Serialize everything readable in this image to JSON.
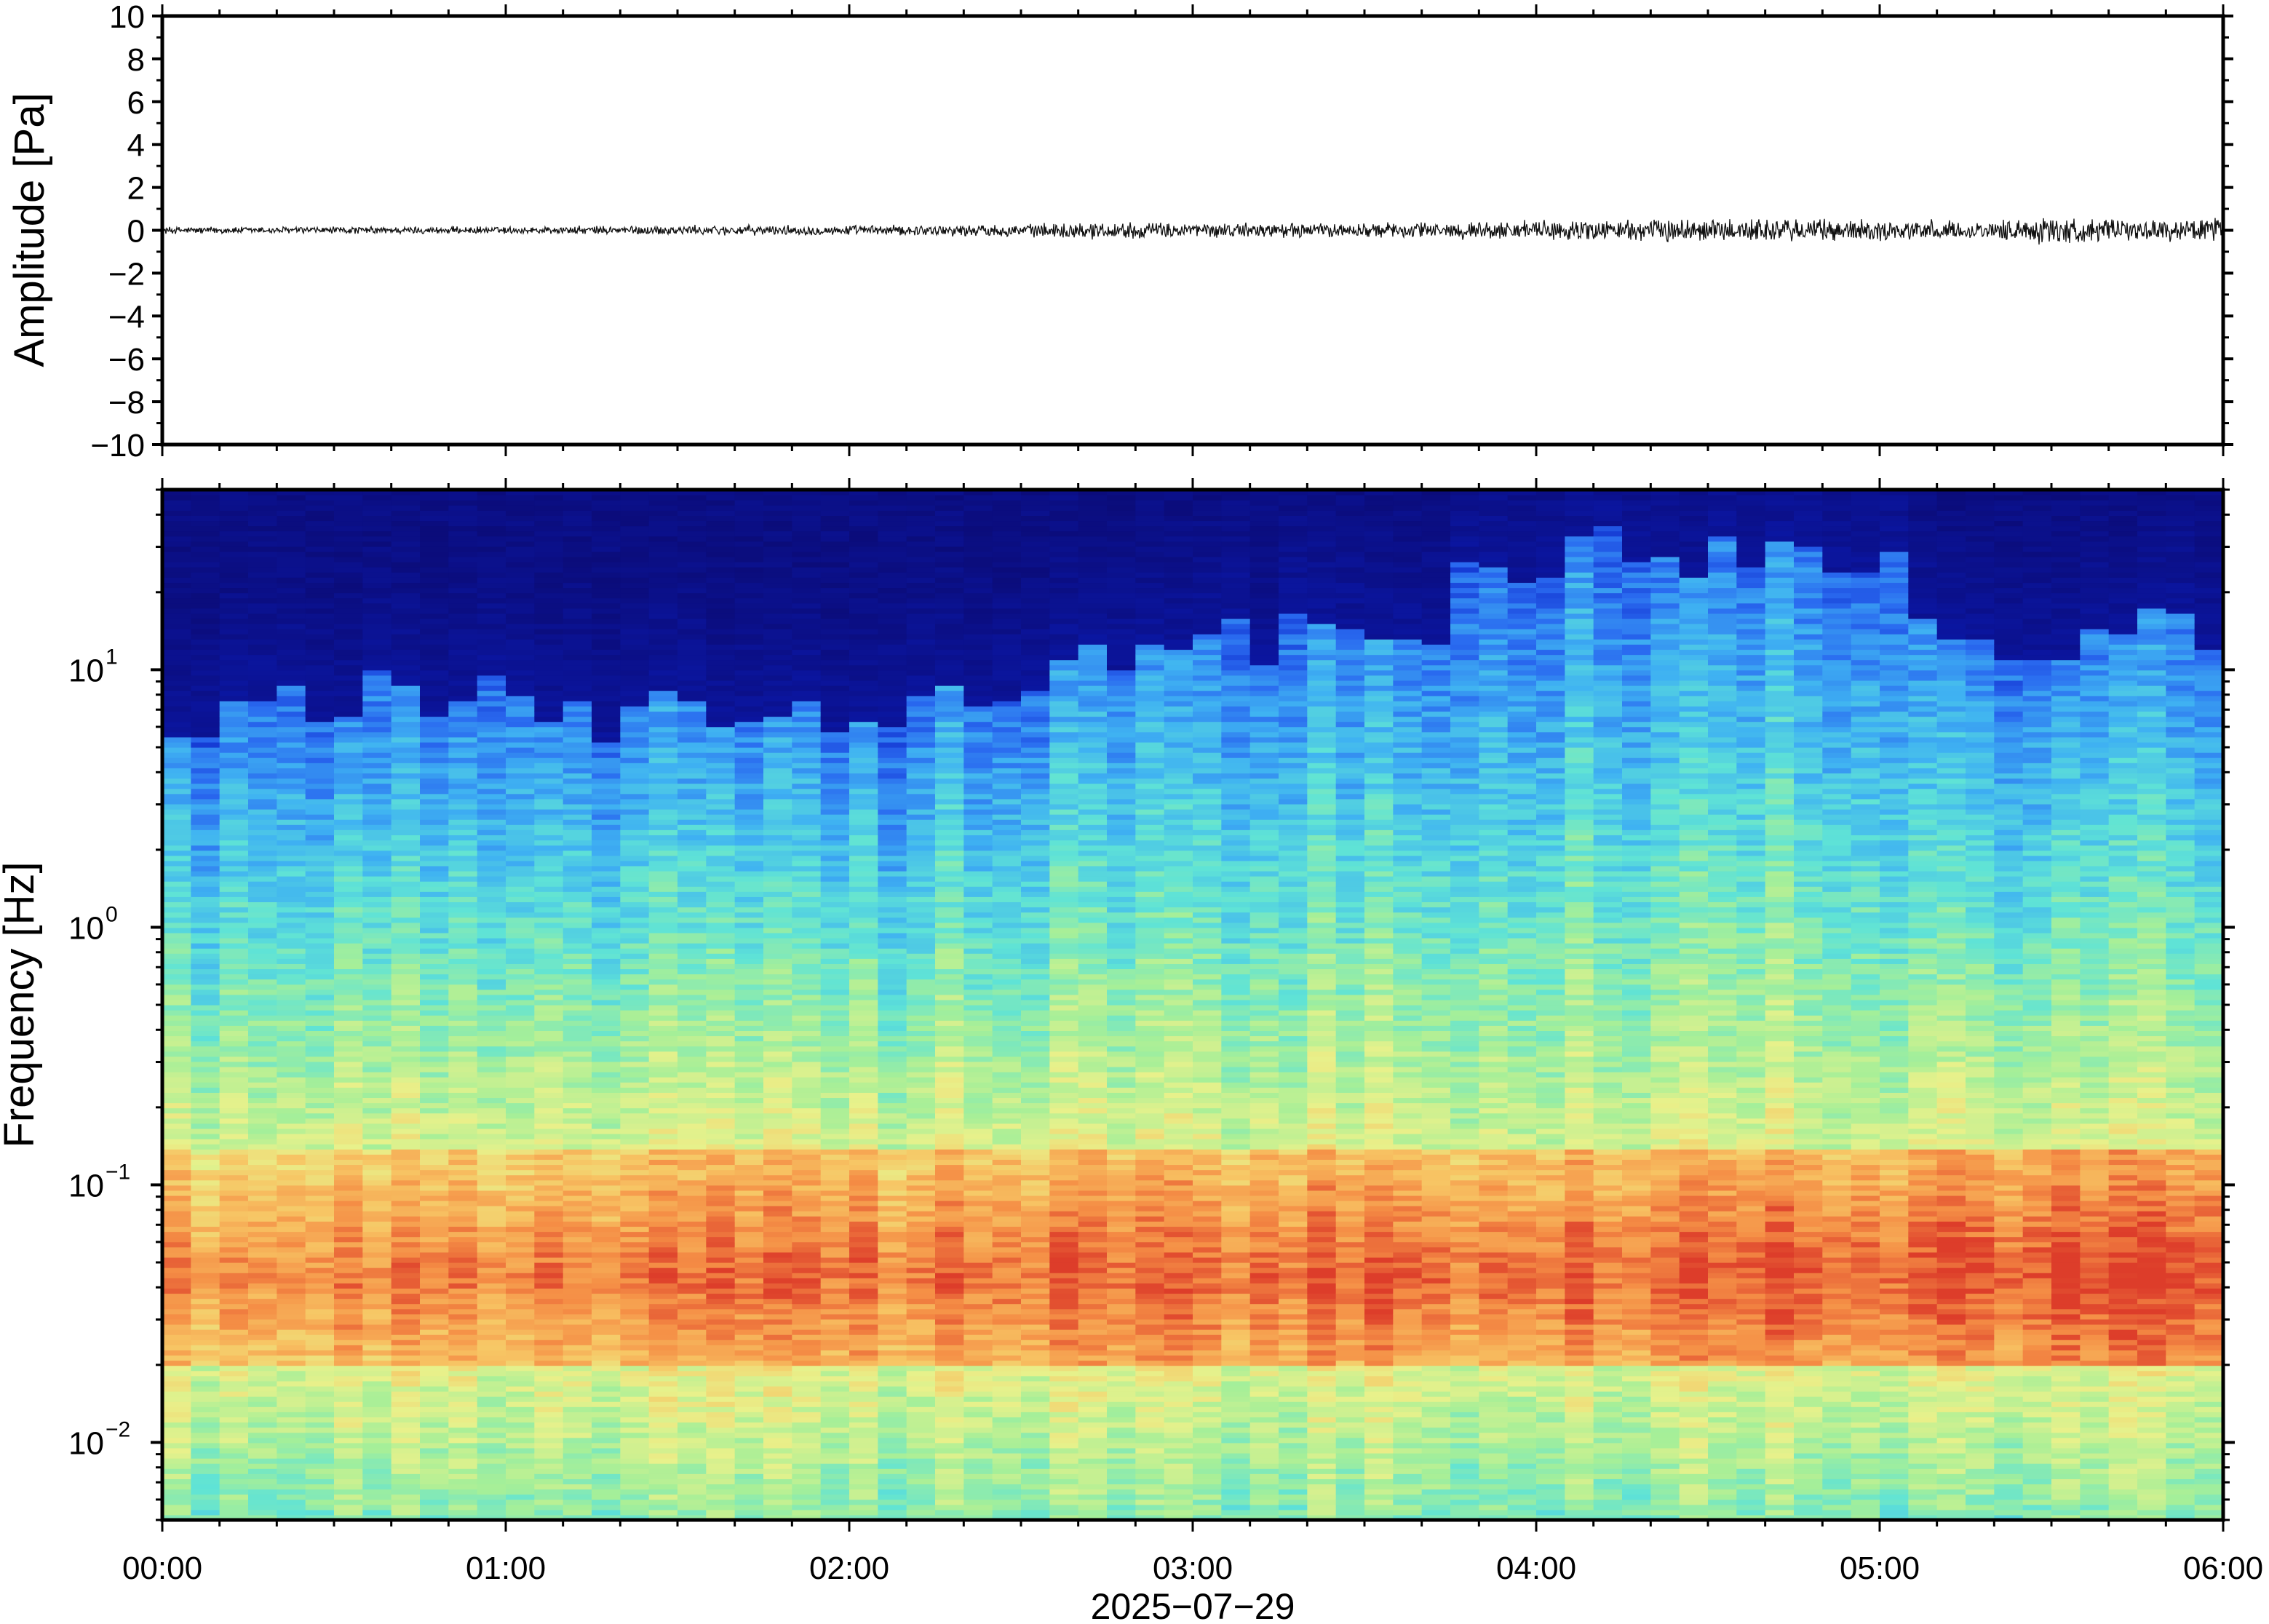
{
  "chart_data": [
    {
      "type": "line",
      "panel": "waveform",
      "ylabel": "Amplitude [Pa]",
      "ylim": [
        -10,
        10
      ],
      "y_ticks": [
        10,
        8,
        6,
        4,
        2,
        0,
        -2,
        -4,
        -6,
        -8,
        -10
      ],
      "y_tick_labels": [
        "10",
        "8",
        "6",
        "4",
        "2",
        "0",
        "−2",
        "−4",
        "−6",
        "−8",
        "−10"
      ],
      "xlim_hours": [
        0,
        6
      ],
      "series": [
        {
          "x_hours": [
            0,
            0.5,
            1,
            1.5,
            2,
            2.5,
            2.7,
            3,
            3.5,
            3.8,
            4,
            4.3,
            4.6,
            5,
            5.3,
            5.5,
            5.7,
            6
          ],
          "envelope_pa": [
            0.15,
            0.15,
            0.15,
            0.2,
            0.2,
            0.25,
            0.35,
            0.3,
            0.3,
            0.35,
            0.4,
            0.45,
            0.5,
            0.45,
            0.35,
            0.6,
            0.4,
            0.5
          ]
        }
      ],
      "grid": false
    },
    {
      "type": "heatmap",
      "panel": "spectrogram",
      "ylabel": "Frequency [Hz]",
      "yscale": "log",
      "ylim": [
        0.005,
        50
      ],
      "y_ticks": [
        0.01,
        0.1,
        1,
        10
      ],
      "y_tick_labels": [
        {
          "base": "10",
          "exp": "−2"
        },
        {
          "base": "10",
          "exp": "−1"
        },
        {
          "base": "10",
          "exp": "0"
        },
        {
          "base": "10",
          "exp": "1"
        }
      ],
      "xlim_hours": [
        0,
        6
      ],
      "x_tick_labels": [
        "00:00",
        "01:00",
        "02:00",
        "03:00",
        "04:00",
        "05:00",
        "06:00"
      ],
      "xlabel": "2025−07−29",
      "colormap": [
        "#0b0c7a",
        "#0a1fc4",
        "#2a6bf0",
        "#3fb2f2",
        "#5fe3d6",
        "#a6ef98",
        "#e8f18b",
        "#f7c564",
        "#f58f46",
        "#dd3d2a"
      ],
      "time_bins": 72,
      "noise_floor_cutoff_hz_by_hour": {
        "x_hours": [
          0,
          0.5,
          1,
          1.3,
          1.7,
          2,
          2.5,
          2.7,
          3,
          3.4,
          3.6,
          3.8,
          4,
          4.5,
          5,
          5.15,
          5.4,
          6
        ],
        "cutoff_hz": [
          7,
          8,
          9,
          6,
          8,
          7,
          8,
          11,
          13,
          14,
          10,
          22,
          28,
          30,
          30,
          18,
          14,
          16
        ]
      },
      "peak_band_hz": [
        0.02,
        0.1
      ],
      "grid": false
    }
  ]
}
